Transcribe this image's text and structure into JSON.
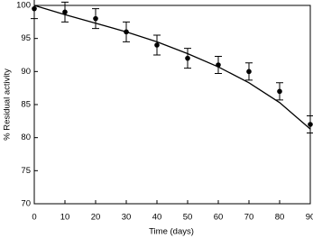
{
  "chart_data": {
    "type": "scatter",
    "x_label": "Time (days)",
    "y_label": "% Residual activity",
    "xlim": [
      0,
      90
    ],
    "ylim": [
      70,
      100
    ],
    "xticks": [
      0,
      10,
      20,
      30,
      40,
      50,
      60,
      70,
      80,
      90
    ],
    "yticks": [
      70,
      75,
      80,
      85,
      90,
      95,
      100
    ],
    "color": "#000000",
    "series": [
      {
        "type": "scatter",
        "x": [
          0,
          10,
          20,
          30,
          40,
          50,
          60,
          70,
          80,
          90
        ],
        "values": [
          99.5,
          99,
          98,
          96,
          94,
          92,
          91,
          90,
          87,
          82
        ],
        "errors": [
          1.5,
          1.5,
          1.5,
          1.5,
          1.5,
          1.5,
          1.3,
          1.3,
          1.3,
          1.3
        ]
      },
      {
        "type": "line",
        "x": [
          0,
          10,
          20,
          30,
          40,
          50,
          60,
          70,
          80,
          90
        ],
        "values": [
          100,
          98.6,
          97.3,
          96,
          94.5,
          92.7,
          90.7,
          88.3,
          85.3,
          81.3
        ]
      }
    ]
  }
}
